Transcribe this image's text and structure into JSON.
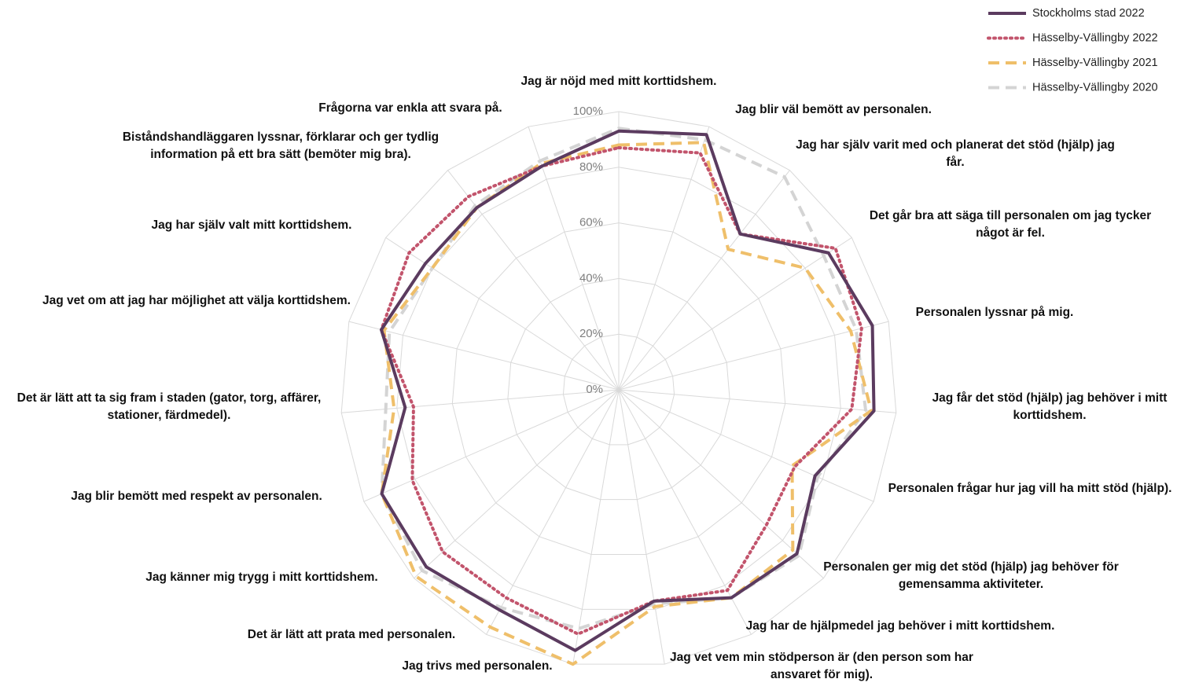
{
  "chart_data": {
    "type": "radar",
    "categories": [
      "Jag är nöjd med mitt korttidshem.",
      "Jag blir väl bemött av personalen.",
      "Jag har själv varit med och planerat det stöd (hjälp) jag får.",
      "Det går bra att säga till personalen om jag tycker något är fel.",
      "Personalen lyssnar på mig.",
      "Jag får det stöd (hjälp) jag behöver i mitt korttidshem.",
      "Personalen frågar hur jag vill ha mitt stöd (hjälp).",
      "Personalen ger mig det stöd (hjälp) jag behöver för gemensamma aktiviteter.",
      "Jag har de hjälpmedel jag behöver i mitt korttidshem.",
      "Jag vet vem min stödperson är (den person som har ansvaret för mig).",
      "Jag trivs med personalen.",
      "Det är lätt att prata med personalen.",
      "Jag känner mig trygg i mitt korttidshem.",
      "Jag blir bemött med respekt av personalen.",
      "Det är lätt att ta sig fram i staden (gator, torg, affärer, stationer, färdmedel).",
      "Jag vet om att jag har möjlighet att välja korttidshem.",
      "Jag har själv valt mitt korttidshem.",
      "Biståndshandläggaren lyssnar, förklarar och ger tydlig information på ett bra sätt (bemöter mig bra).",
      "Frågorna var enkla att svara på."
    ],
    "series": [
      {
        "name": "Stockholms stad 2022",
        "color": "#5b3b5f",
        "line_style": "solid",
        "values": [
          93,
          97,
          71,
          90,
          94,
          92,
          77,
          87,
          85,
          77,
          95,
          90,
          94,
          93,
          77,
          88,
          83,
          83,
          85
        ]
      },
      {
        "name": "Hässelby-Vällingby 2022",
        "color": "#c2546c",
        "line_style": "dotted",
        "values": [
          87,
          90,
          71,
          93,
          90,
          84,
          69,
          72,
          82,
          77,
          89,
          85,
          86,
          81,
          74,
          88,
          90,
          88,
          85
        ]
      },
      {
        "name": "Hässelby-Vällingby 2021",
        "color": "#efbf6a",
        "line_style": "dashed",
        "values": [
          88,
          94,
          64,
          80,
          86,
          91,
          68,
          85,
          85,
          79,
          100,
          97,
          99,
          93,
          81,
          87,
          80,
          83,
          86
        ]
      },
      {
        "name": "Hässelby-Vällingby 2020",
        "color": "#d4d4d4",
        "line_style": "dashed",
        "values": [
          94,
          95,
          97,
          88,
          88,
          89,
          78,
          88,
          85,
          78,
          87,
          89,
          96,
          93,
          84,
          85,
          80,
          84,
          87
        ]
      }
    ],
    "rlim": [
      0,
      100
    ],
    "rticks": [
      {
        "value": 0,
        "label": "0%"
      },
      {
        "value": 20,
        "label": "20%"
      },
      {
        "value": 40,
        "label": "40%"
      },
      {
        "value": 60,
        "label": "60%"
      },
      {
        "value": 80,
        "label": "80%"
      },
      {
        "value": 100,
        "label": "100%"
      }
    ],
    "grid": true,
    "legend": "top-right"
  }
}
